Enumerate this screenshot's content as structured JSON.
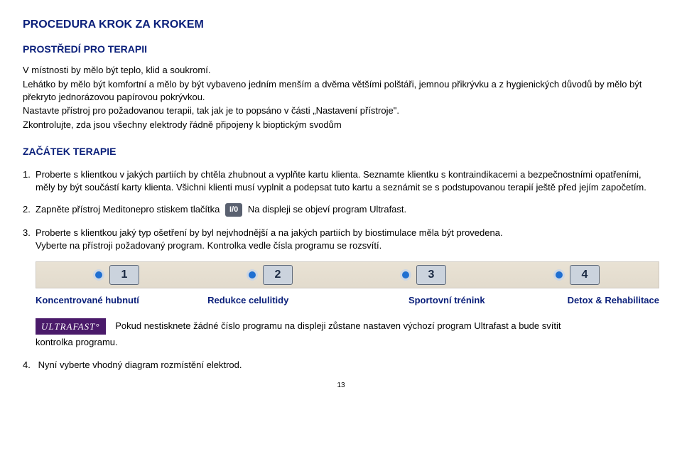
{
  "title": "PROCEDURA KROK ZA KROKEM",
  "section1": {
    "heading": "PROSTŘEDÍ PRO TERAPII",
    "p1": "V místnosti by mělo být teplo, klid a soukromí.",
    "p2": "Lehátko by mělo být komfortní  a mělo by být vybaveno jedním menším a dvěma většími polštáři, jemnou přikrývku a z hygienických důvodů by mělo být překryto jednorázovou papírovou pokrývkou.",
    "p3": "Nastavte přístroj pro požadovanou terapii, tak jak je to popsáno v části „Nastavení přístroje\".",
    "p4": "Zkontrolujte, zda jsou všechny elektrody řádně připojeny k bioptickým svodům"
  },
  "section2": {
    "heading": "ZAČÁTEK TERAPIE",
    "item1": "Proberte s klientkou v jakých partiích by chtěla zhubnout a vyplňte kartu klienta. Seznamte klientku s kontraindikacemi a bezpečnostními opatřeními, měly by být součástí karty klienta. Všichni klienti musí vyplnit a podepsat tuto kartu a seznámit se s podstupovanou terapií ještě před jejím započetím.",
    "item2a": "Zapněte přístroj Meditonepro stiskem tlačítka",
    "io_label": "I/0",
    "item2b": "Na displeji se objeví program Ultrafast.",
    "item3a": "Proberte s klientkou jaký typ ošetření by  byl nejvhodnější a na jakých partiích by biostimulace měla být provedena.",
    "item3b": "Vyberte na přístroji požadovaný program. Kontrolka vedle čísla programu se rozsvítí.",
    "programs": [
      "1",
      "2",
      "3",
      "4"
    ],
    "labels": [
      "Koncentrované hubnutí",
      "Redukce celulitidy",
      "Sportovní trénink",
      "Detox & Rehabilitace"
    ],
    "ultrafast_badge": "ULTRAFAST°",
    "ultrafast_text": "Pokud nestisknete žádné číslo programu na displeji zůstane nastaven výchozí program Ultrafast a bude svítit",
    "kontrolka": "kontrolka programu.",
    "item4": "Nyní vyberte vhodný diagram rozmístění elektrod."
  },
  "page_number": "13"
}
